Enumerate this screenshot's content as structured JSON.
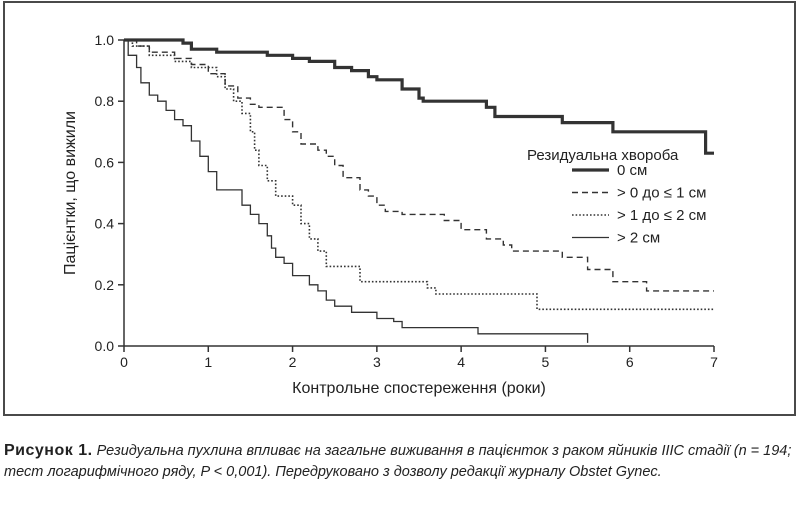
{
  "chart_data": {
    "type": "line",
    "subtype": "kaplan-meier step",
    "xlabel": "Контрольне спостереження (роки)",
    "ylabel": "Пацієнтки, що вижили",
    "xlim": [
      0,
      7
    ],
    "ylim": [
      0,
      1.0
    ],
    "xticks": [
      "0",
      "1",
      "2",
      "3",
      "4",
      "5",
      "6",
      "7"
    ],
    "yticks": [
      "0.0",
      "0.2",
      "0.4",
      "0.6",
      "0.8",
      "1.0"
    ],
    "legend": {
      "title": "Резидуальна хвороба",
      "position": "right"
    },
    "series": [
      {
        "name": "0 см",
        "style": "thick-solid",
        "points": [
          [
            0,
            1.0
          ],
          [
            0.7,
            1.0
          ],
          [
            0.7,
            0.99
          ],
          [
            0.8,
            0.99
          ],
          [
            0.8,
            0.97
          ],
          [
            1.1,
            0.97
          ],
          [
            1.1,
            0.96
          ],
          [
            1.7,
            0.96
          ],
          [
            1.7,
            0.95
          ],
          [
            2.0,
            0.95
          ],
          [
            2.0,
            0.94
          ],
          [
            2.2,
            0.94
          ],
          [
            2.2,
            0.93
          ],
          [
            2.5,
            0.93
          ],
          [
            2.5,
            0.91
          ],
          [
            2.7,
            0.91
          ],
          [
            2.7,
            0.9
          ],
          [
            2.9,
            0.9
          ],
          [
            2.9,
            0.88
          ],
          [
            3.0,
            0.88
          ],
          [
            3.0,
            0.87
          ],
          [
            3.3,
            0.87
          ],
          [
            3.3,
            0.84
          ],
          [
            3.5,
            0.84
          ],
          [
            3.5,
            0.81
          ],
          [
            3.55,
            0.81
          ],
          [
            3.55,
            0.8
          ],
          [
            4.3,
            0.8
          ],
          [
            4.3,
            0.78
          ],
          [
            4.4,
            0.78
          ],
          [
            4.4,
            0.75
          ],
          [
            5.2,
            0.75
          ],
          [
            5.2,
            0.73
          ],
          [
            5.8,
            0.73
          ],
          [
            5.8,
            0.7
          ],
          [
            6.9,
            0.7
          ],
          [
            6.9,
            0.63
          ],
          [
            7.0,
            0.63
          ]
        ]
      },
      {
        "name": "> 0 до ≤ 1 см",
        "style": "dashed",
        "points": [
          [
            0,
            1.0
          ],
          [
            0.15,
            1.0
          ],
          [
            0.15,
            0.98
          ],
          [
            0.3,
            0.98
          ],
          [
            0.3,
            0.96
          ],
          [
            0.6,
            0.96
          ],
          [
            0.6,
            0.94
          ],
          [
            0.8,
            0.94
          ],
          [
            0.8,
            0.92
          ],
          [
            1.0,
            0.92
          ],
          [
            1.0,
            0.89
          ],
          [
            1.2,
            0.89
          ],
          [
            1.2,
            0.85
          ],
          [
            1.35,
            0.85
          ],
          [
            1.35,
            0.81
          ],
          [
            1.5,
            0.81
          ],
          [
            1.5,
            0.79
          ],
          [
            1.6,
            0.79
          ],
          [
            1.6,
            0.78
          ],
          [
            1.9,
            0.78
          ],
          [
            1.9,
            0.74
          ],
          [
            2.0,
            0.74
          ],
          [
            2.0,
            0.7
          ],
          [
            2.1,
            0.7
          ],
          [
            2.1,
            0.66
          ],
          [
            2.3,
            0.66
          ],
          [
            2.3,
            0.64
          ],
          [
            2.4,
            0.64
          ],
          [
            2.4,
            0.62
          ],
          [
            2.5,
            0.62
          ],
          [
            2.5,
            0.59
          ],
          [
            2.6,
            0.59
          ],
          [
            2.6,
            0.55
          ],
          [
            2.8,
            0.55
          ],
          [
            2.8,
            0.51
          ],
          [
            2.9,
            0.51
          ],
          [
            2.9,
            0.49
          ],
          [
            3.0,
            0.49
          ],
          [
            3.0,
            0.46
          ],
          [
            3.1,
            0.46
          ],
          [
            3.1,
            0.44
          ],
          [
            3.3,
            0.44
          ],
          [
            3.3,
            0.43
          ],
          [
            3.8,
            0.43
          ],
          [
            3.8,
            0.41
          ],
          [
            4.0,
            0.41
          ],
          [
            4.0,
            0.38
          ],
          [
            4.3,
            0.38
          ],
          [
            4.3,
            0.35
          ],
          [
            4.5,
            0.35
          ],
          [
            4.5,
            0.33
          ],
          [
            4.6,
            0.33
          ],
          [
            4.6,
            0.31
          ],
          [
            5.2,
            0.31
          ],
          [
            5.2,
            0.29
          ],
          [
            5.5,
            0.29
          ],
          [
            5.5,
            0.25
          ],
          [
            5.8,
            0.25
          ],
          [
            5.8,
            0.21
          ],
          [
            6.2,
            0.21
          ],
          [
            6.2,
            0.18
          ],
          [
            7.0,
            0.18
          ]
        ]
      },
      {
        "name": "> 1 до ≤ 2 см",
        "style": "dotted",
        "points": [
          [
            0,
            1.0
          ],
          [
            0.1,
            1.0
          ],
          [
            0.1,
            0.98
          ],
          [
            0.3,
            0.98
          ],
          [
            0.3,
            0.95
          ],
          [
            0.6,
            0.95
          ],
          [
            0.6,
            0.93
          ],
          [
            0.8,
            0.93
          ],
          [
            0.8,
            0.91
          ],
          [
            1.1,
            0.91
          ],
          [
            1.1,
            0.88
          ],
          [
            1.2,
            0.88
          ],
          [
            1.2,
            0.84
          ],
          [
            1.3,
            0.84
          ],
          [
            1.3,
            0.8
          ],
          [
            1.4,
            0.8
          ],
          [
            1.4,
            0.76
          ],
          [
            1.5,
            0.76
          ],
          [
            1.5,
            0.7
          ],
          [
            1.55,
            0.7
          ],
          [
            1.55,
            0.64
          ],
          [
            1.6,
            0.64
          ],
          [
            1.6,
            0.59
          ],
          [
            1.7,
            0.59
          ],
          [
            1.7,
            0.54
          ],
          [
            1.8,
            0.54
          ],
          [
            1.8,
            0.49
          ],
          [
            2.0,
            0.49
          ],
          [
            2.0,
            0.46
          ],
          [
            2.1,
            0.46
          ],
          [
            2.1,
            0.4
          ],
          [
            2.2,
            0.4
          ],
          [
            2.2,
            0.35
          ],
          [
            2.3,
            0.35
          ],
          [
            2.3,
            0.31
          ],
          [
            2.4,
            0.31
          ],
          [
            2.4,
            0.26
          ],
          [
            2.8,
            0.26
          ],
          [
            2.8,
            0.21
          ],
          [
            3.6,
            0.21
          ],
          [
            3.6,
            0.19
          ],
          [
            3.7,
            0.19
          ],
          [
            3.7,
            0.17
          ],
          [
            4.9,
            0.17
          ],
          [
            4.9,
            0.12
          ],
          [
            7.0,
            0.12
          ]
        ]
      },
      {
        "name": "> 2 см",
        "style": "thin-solid",
        "points": [
          [
            0,
            1.0
          ],
          [
            0.05,
            1.0
          ],
          [
            0.05,
            0.95
          ],
          [
            0.15,
            0.95
          ],
          [
            0.15,
            0.91
          ],
          [
            0.2,
            0.91
          ],
          [
            0.2,
            0.86
          ],
          [
            0.3,
            0.86
          ],
          [
            0.3,
            0.82
          ],
          [
            0.4,
            0.82
          ],
          [
            0.4,
            0.8
          ],
          [
            0.5,
            0.8
          ],
          [
            0.5,
            0.77
          ],
          [
            0.6,
            0.77
          ],
          [
            0.6,
            0.74
          ],
          [
            0.7,
            0.74
          ],
          [
            0.7,
            0.72
          ],
          [
            0.8,
            0.72
          ],
          [
            0.8,
            0.67
          ],
          [
            0.9,
            0.67
          ],
          [
            0.9,
            0.62
          ],
          [
            1.0,
            0.62
          ],
          [
            1.0,
            0.57
          ],
          [
            1.1,
            0.57
          ],
          [
            1.1,
            0.51
          ],
          [
            1.4,
            0.51
          ],
          [
            1.4,
            0.46
          ],
          [
            1.5,
            0.46
          ],
          [
            1.5,
            0.43
          ],
          [
            1.6,
            0.43
          ],
          [
            1.6,
            0.4
          ],
          [
            1.7,
            0.4
          ],
          [
            1.7,
            0.36
          ],
          [
            1.75,
            0.36
          ],
          [
            1.75,
            0.32
          ],
          [
            1.8,
            0.32
          ],
          [
            1.8,
            0.29
          ],
          [
            1.9,
            0.29
          ],
          [
            1.9,
            0.27
          ],
          [
            2.0,
            0.27
          ],
          [
            2.0,
            0.23
          ],
          [
            2.2,
            0.23
          ],
          [
            2.2,
            0.2
          ],
          [
            2.3,
            0.2
          ],
          [
            2.3,
            0.18
          ],
          [
            2.4,
            0.18
          ],
          [
            2.4,
            0.15
          ],
          [
            2.5,
            0.15
          ],
          [
            2.5,
            0.13
          ],
          [
            2.7,
            0.13
          ],
          [
            2.7,
            0.11
          ],
          [
            3.0,
            0.11
          ],
          [
            3.0,
            0.09
          ],
          [
            3.2,
            0.09
          ],
          [
            3.2,
            0.08
          ],
          [
            3.3,
            0.08
          ],
          [
            3.3,
            0.06
          ],
          [
            4.2,
            0.06
          ],
          [
            4.2,
            0.04
          ],
          [
            5.5,
            0.04
          ],
          [
            5.5,
            0.01
          ]
        ]
      }
    ]
  },
  "caption": {
    "label": "Рисунок 1.",
    "text": "Резидуальна пухлина впливає на загальне виживання в пацієнток з раком яйників IIIC стадії (n = 194; тест логарифмічного ряду, P < 0,001). Передруковано з дозволу редакції журналу Obstet Gynec."
  }
}
